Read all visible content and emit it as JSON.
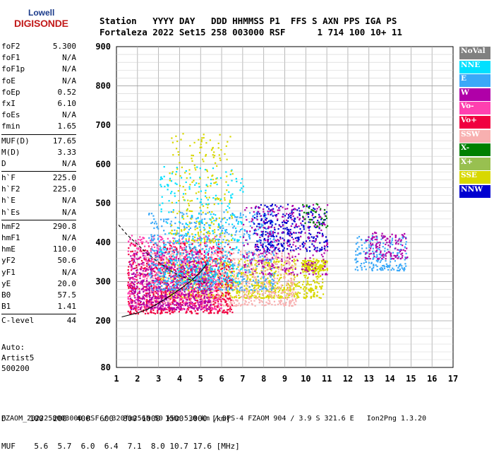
{
  "logo": {
    "line1": "Lowell",
    "line2": "DIGISONDE"
  },
  "header": {
    "line1": "Station   YYYY DAY   DDD HHMMSS P1  FFS S AXN PPS IGA PS",
    "line2": "Fortaleza 2022 Set15 258 003000 RSF      1 714 100 10+ 11"
  },
  "params": [
    {
      "name": "foF2",
      "value": "5.300"
    },
    {
      "name": "foF1",
      "value": "N/A"
    },
    {
      "name": "foF1p",
      "value": "N/A"
    },
    {
      "name": "foE",
      "value": "N/A"
    },
    {
      "name": "foEp",
      "value": "0.52"
    },
    {
      "name": "fxI",
      "value": "6.10"
    },
    {
      "name": "foEs",
      "value": "N/A"
    },
    {
      "name": "fmin",
      "value": "1.65"
    },
    {
      "name": "MUF(D)",
      "value": "17.65",
      "sep": true
    },
    {
      "name": "M(D)",
      "value": "3.33"
    },
    {
      "name": "D",
      "value": "N/A"
    },
    {
      "name": "h`F",
      "value": "225.0",
      "sep": true
    },
    {
      "name": "h`F2",
      "value": "225.0"
    },
    {
      "name": "h`E",
      "value": "N/A"
    },
    {
      "name": "h`Es",
      "value": "N/A"
    },
    {
      "name": "hmF2",
      "value": "290.8",
      "sep": true
    },
    {
      "name": "hmF1",
      "value": "N/A"
    },
    {
      "name": "hmE",
      "value": "110.0"
    },
    {
      "name": "yF2",
      "value": "50.6"
    },
    {
      "name": "yF1",
      "value": "N/A"
    },
    {
      "name": "yE",
      "value": "20.0"
    },
    {
      "name": "B0",
      "value": "57.5"
    },
    {
      "name": "B1",
      "value": "1.41"
    },
    {
      "name": "C-level",
      "value": "44",
      "sep": true
    }
  ],
  "auto": {
    "line1": "Auto:",
    "line2": "Artist5",
    "line3": "500200"
  },
  "legend": [
    {
      "label": "NoVal",
      "color": "#808080"
    },
    {
      "label": "NNE",
      "color": "#00e0ff"
    },
    {
      "label": "E",
      "color": "#3aa8f8"
    },
    {
      "label": "W",
      "color": "#b000a8"
    },
    {
      "label": "Vo-",
      "color": "#ff40b0"
    },
    {
      "label": "Vo+",
      "color": "#f00040"
    },
    {
      "label": "SSW",
      "color": "#f8b0b0"
    },
    {
      "label": "X-",
      "color": "#008000"
    },
    {
      "label": "X+",
      "color": "#98c050"
    },
    {
      "label": "SSE",
      "color": "#d8d800"
    },
    {
      "label": "NNW",
      "color": "#0000d0"
    }
  ],
  "bottom": {
    "line1": "D     100  200  400  600  800 1000 1500 3000 [km]",
    "line2": "MUF    5.6  5.7  6.0  6.4  7.1  8.0 10.7 17.6 [MHz]"
  },
  "footer": "FZAOM_2022258003000.RSF / 320fx256h 50 kHz 5.0 km / DPS-4 FZAOM 904 / 3.9 S 321.6 E   Ion2Png 1.3.20",
  "chart_data": {
    "type": "scatter",
    "title": "",
    "xlabel": "",
    "ylabel": "",
    "xlim": [
      1,
      17
    ],
    "ylim": [
      80,
      900
    ],
    "x_ticks": [
      1,
      2,
      3,
      4,
      5,
      6,
      7,
      8,
      9,
      10,
      11,
      12,
      13,
      14,
      15,
      16,
      17
    ],
    "y_ticks": [
      80,
      200,
      300,
      400,
      500,
      600,
      700,
      800,
      900
    ],
    "grid": true,
    "clusters": [
      {
        "name": "SSE",
        "x": [
          3.0,
          10.8
        ],
        "y": [
          260,
          360
        ],
        "count": 900
      },
      {
        "name": "SSE",
        "x": [
          9.8,
          11.0
        ],
        "y": [
          330,
          360
        ],
        "count": 120
      },
      {
        "name": "SSW",
        "x": [
          2.2,
          9.5
        ],
        "y": [
          240,
          380
        ],
        "count": 900
      },
      {
        "name": "Vo+",
        "x": [
          1.5,
          6.5
        ],
        "y": [
          220,
          400
        ],
        "count": 800
      },
      {
        "name": "Vo-",
        "x": [
          1.5,
          6.0
        ],
        "y": [
          230,
          420
        ],
        "count": 500
      },
      {
        "name": "W",
        "x": [
          1.6,
          5.5
        ],
        "y": [
          230,
          380
        ],
        "count": 600
      },
      {
        "name": "E",
        "x": [
          2.5,
          8.5
        ],
        "y": [
          280,
          480
        ],
        "count": 700
      },
      {
        "name": "NNE",
        "x": [
          3.0,
          7.0
        ],
        "y": [
          300,
          600
        ],
        "count": 300
      },
      {
        "name": "NNW",
        "x": [
          7.5,
          11.0
        ],
        "y": [
          380,
          500
        ],
        "count": 300
      },
      {
        "name": "W",
        "x": [
          7.0,
          11.0
        ],
        "y": [
          320,
          500
        ],
        "count": 300
      },
      {
        "name": "E",
        "x": [
          12.3,
          14.8
        ],
        "y": [
          330,
          420
        ],
        "count": 200
      },
      {
        "name": "W",
        "x": [
          12.8,
          14.8
        ],
        "y": [
          360,
          430
        ],
        "count": 120
      },
      {
        "name": "SSE",
        "x": [
          3.5,
          6.5
        ],
        "y": [
          400,
          680
        ],
        "count": 220
      },
      {
        "name": "X-",
        "x": [
          9.8,
          11.0
        ],
        "y": [
          440,
          510
        ],
        "count": 40
      }
    ],
    "traces": [
      {
        "name": "virtual height profile",
        "x": [
          1.25,
          2.0,
          2.5,
          3.0,
          3.5,
          4.0,
          4.5,
          5.0,
          5.3
        ],
        "y": [
          210,
          220,
          230,
          245,
          262,
          280,
          300,
          325,
          345
        ]
      },
      {
        "name": "dashed trace",
        "x": [
          1.1,
          1.5,
          2.0,
          2.5,
          3.0,
          3.5,
          4.0,
          4.5,
          5.0,
          5.3
        ],
        "y": [
          445,
          420,
          395,
          370,
          350,
          330,
          315,
          305,
          300,
          298
        ]
      }
    ]
  }
}
